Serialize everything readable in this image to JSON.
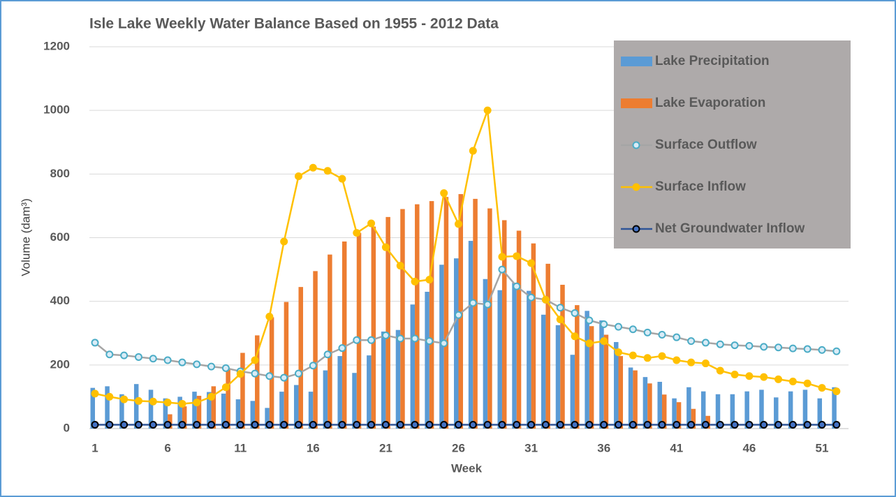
{
  "chart_data": {
    "type": "bar",
    "title": "Isle Lake Weekly Water Balance Based on 1955 - 2012 Data",
    "x_label": "Week",
    "y_label": "Volume (dam³)",
    "categories": [
      1,
      null,
      null,
      null,
      null,
      6,
      null,
      null,
      null,
      null,
      11,
      null,
      null,
      null,
      null,
      16,
      null,
      null,
      null,
      null,
      21,
      null,
      null,
      null,
      null,
      26,
      null,
      null,
      null,
      null,
      31,
      null,
      null,
      null,
      null,
      36,
      null,
      null,
      null,
      null,
      41,
      null,
      null,
      null,
      null,
      46,
      null,
      null,
      null,
      null,
      51,
      null
    ],
    "ylim": [
      0,
      1200
    ],
    "yticks": [
      0,
      200,
      400,
      600,
      800,
      1000,
      1200
    ],
    "grid": true,
    "legend": "upper right",
    "series": [
      {
        "name": "Lake Precipitation",
        "type": "bar",
        "color": "#5b9bd5",
        "values": [
          128,
          133,
          108,
          140,
          122,
          95,
          100,
          116,
          115,
          110,
          92,
          87,
          65,
          116,
          137,
          116,
          183,
          228,
          175,
          230,
          305,
          310,
          390,
          430,
          515,
          535,
          590,
          470,
          435,
          458,
          433,
          358,
          325,
          232,
          370,
          340,
          272,
          192,
          162,
          147,
          95,
          130,
          117,
          108,
          108,
          117,
          122,
          98,
          117,
          122,
          95,
          130
        ]
      },
      {
        "name": "Lake Evaporation",
        "type": "bar",
        "color": "#ed7d31",
        "values": [
          0,
          0,
          0,
          0,
          0,
          45,
          70,
          103,
          133,
          190,
          238,
          293,
          350,
          398,
          445,
          495,
          547,
          588,
          615,
          635,
          665,
          690,
          705,
          715,
          728,
          737,
          722,
          692,
          655,
          622,
          582,
          518,
          452,
          388,
          322,
          295,
          228,
          183,
          142,
          107,
          83,
          62,
          40,
          0,
          0,
          0,
          0,
          0,
          0,
          0,
          0,
          0
        ]
      },
      {
        "name": "Surface Outflow",
        "type": "line",
        "color": "#a5a5a5",
        "marker_fill": "#d9ecf7",
        "marker_edge": "#4bacc6",
        "values": [
          270,
          233,
          230,
          225,
          220,
          215,
          208,
          202,
          195,
          190,
          180,
          173,
          165,
          160,
          173,
          198,
          233,
          253,
          278,
          278,
          293,
          283,
          283,
          275,
          268,
          357,
          395,
          390,
          500,
          447,
          412,
          405,
          380,
          363,
          340,
          328,
          320,
          312,
          302,
          295,
          287,
          275,
          270,
          265,
          262,
          260,
          257,
          255,
          252,
          250,
          247,
          243
        ]
      },
      {
        "name": "Surface Inflow",
        "type": "line",
        "color": "#ffc000",
        "marker_fill": "#ffc000",
        "marker_edge": "#ffc000",
        "values": [
          110,
          100,
          92,
          87,
          85,
          82,
          78,
          82,
          100,
          130,
          172,
          215,
          352,
          588,
          793,
          820,
          810,
          785,
          615,
          645,
          570,
          512,
          462,
          468,
          740,
          643,
          873,
          1000,
          540,
          542,
          520,
          405,
          343,
          290,
          268,
          275,
          240,
          230,
          222,
          228,
          215,
          208,
          205,
          182,
          170,
          165,
          162,
          155,
          148,
          142,
          128,
          117
        ]
      },
      {
        "name": "Net Groundwater Inflow",
        "type": "line",
        "color": "#2f5597",
        "marker_fill": "#4472c4",
        "marker_edge": "#000000",
        "values": [
          12,
          12,
          12,
          12,
          12,
          12,
          12,
          12,
          12,
          12,
          12,
          12,
          12,
          12,
          12,
          12,
          12,
          12,
          12,
          12,
          12,
          12,
          12,
          12,
          12,
          12,
          12,
          12,
          12,
          12,
          12,
          12,
          12,
          12,
          12,
          12,
          12,
          12,
          12,
          12,
          12,
          12,
          12,
          12,
          12,
          12,
          12,
          12,
          12,
          12,
          12,
          12
        ]
      }
    ]
  }
}
